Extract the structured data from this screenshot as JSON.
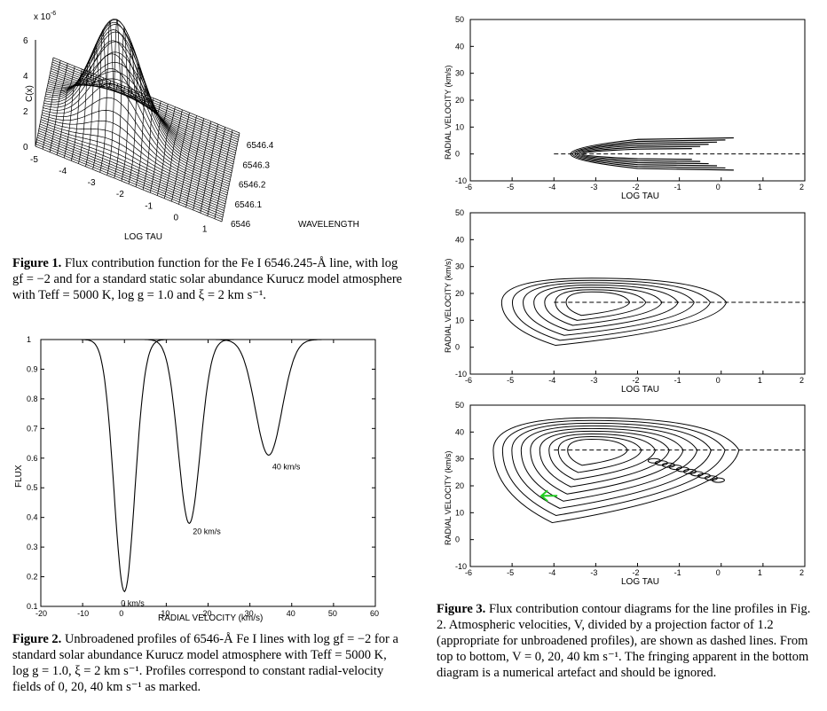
{
  "fig1": {
    "exponent_label": "x 10",
    "exponent_sup": "-6",
    "zlabel": "C(x)",
    "xlabel": "LOG TAU",
    "ylabel": "WAVELENGTH",
    "z_ticks": [
      "6",
      "4",
      "2",
      "0"
    ],
    "logtau_ticks": [
      "-5",
      "-4",
      "-3",
      "-2",
      "-1",
      "0",
      "1"
    ],
    "wave_ticks": [
      "6546",
      "6546.1",
      "6546.2",
      "6546.3",
      "6546.4"
    ],
    "caption_label": "Figure 1.",
    "caption_text": "Flux contribution function for the Fe I 6546.245-Å line, with log gf = −2 and for a standard static solar abundance Kurucz model atmosphere with Teff = 5000 K, log g = 1.0 and ξ = 2 km s⁻¹."
  },
  "fig2": {
    "caption_label": "Figure 2.",
    "caption_text": "Unbroadened profiles of 6546-Å Fe I lines with log gf = −2 for a standard solar abundance Kurucz model atmosphere with Teff = 5000 K, log g = 1.0, ξ = 2 km s⁻¹. Profiles correspond to constant radial-velocity fields of 0, 20, 40 km s⁻¹ as marked."
  },
  "fig3": {
    "caption_label": "Figure 3.",
    "caption_text": "Flux contribution contour diagrams for the line profiles in Fig. 2. Atmospheric velocities, V, divided by a projection factor of 1.2 (appropriate for unbroadened profiles), are shown as dashed lines. From top to bottom, V = 0, 20, 40 km s⁻¹. The fringing apparent in the bottom diagram is a numerical artefact and should be ignored."
  },
  "chart_data": [
    {
      "type": "line",
      "xlabel": "RADIAL VELOCITY (km/s)",
      "ylabel": "FLUX",
      "xlim": [
        -20,
        60
      ],
      "ylim": [
        0.1,
        1.0
      ],
      "xticks": [
        -20,
        -10,
        0,
        10,
        20,
        30,
        40,
        50,
        60
      ],
      "yticks": [
        0.1,
        0.2,
        0.3,
        0.4,
        0.5,
        0.6,
        0.7,
        0.8,
        0.9,
        1
      ],
      "series": [
        {
          "name": "0 km/s",
          "center": 0,
          "min_flux": 0.15,
          "width": 3.5
        },
        {
          "name": "20 km/s",
          "center": 15.5,
          "min_flux": 0.38,
          "width": 3.7
        },
        {
          "name": "40 km/s",
          "center": 34.5,
          "min_flux": 0.61,
          "width": 4.5
        }
      ],
      "annotations": [
        "0 km/s",
        "20 km/s",
        "40 km/s"
      ]
    },
    {
      "type": "contour",
      "xlabel": "LOG TAU",
      "ylabel": "RADIAL VELOCITY (km/s)",
      "xlim": [
        -6,
        2
      ],
      "ylim": [
        -10,
        50
      ],
      "xticks": [
        -6,
        -5,
        -4,
        -3,
        -2,
        -1,
        0,
        1,
        2
      ],
      "yticks": [
        -10,
        0,
        10,
        20,
        30,
        40,
        50
      ],
      "dashed_velocity": 0
    },
    {
      "type": "contour",
      "xlabel": "LOG TAU",
      "ylabel": "RADIAL VELOCITY (km/s)",
      "xlim": [
        -6,
        2
      ],
      "ylim": [
        -10,
        50
      ],
      "xticks": [
        -6,
        -5,
        -4,
        -3,
        -2,
        -1,
        0,
        1,
        2
      ],
      "yticks": [
        -10,
        0,
        10,
        20,
        30,
        40,
        50
      ],
      "dashed_velocity": 16.7
    },
    {
      "type": "contour",
      "xlabel": "LOG TAU",
      "ylabel": "RADIAL VELOCITY (km/s)",
      "xlim": [
        -6,
        2
      ],
      "ylim": [
        -10,
        50
      ],
      "xticks": [
        -6,
        -5,
        -4,
        -3,
        -2,
        -1,
        0,
        1,
        2
      ],
      "yticks": [
        -10,
        0,
        10,
        20,
        30,
        40,
        50
      ],
      "dashed_velocity": 33.3,
      "marker_color": "#22cc22"
    }
  ]
}
